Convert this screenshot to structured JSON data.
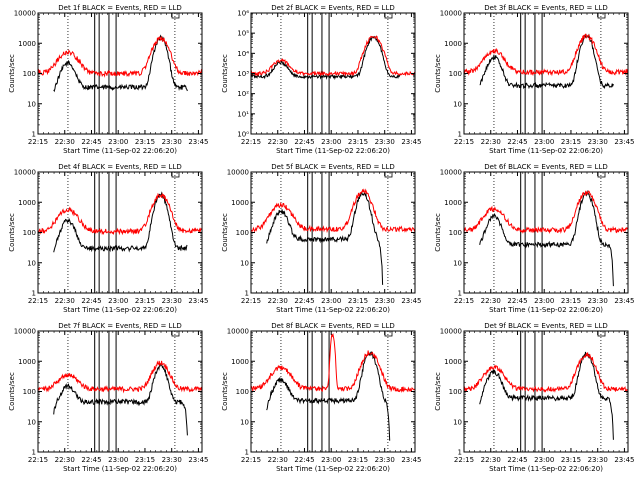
{
  "colors": {
    "events": "#000000",
    "lld": "#ff0000",
    "axes": "#000000",
    "background": "#ffffff"
  },
  "chart_data": [
    {
      "type": "line",
      "title": "Det 1f BLACK = Events, RED = LLD",
      "xlabel": "Start Time (11-Sep-02 22:06:20)",
      "ylabel": "Counts/sec",
      "x_ticks": [
        "22:15",
        "22:30",
        "22:45",
        "23:00",
        "23:15",
        "23:30",
        "23:45"
      ],
      "y_ticks": [
        "1",
        "10",
        "100",
        "1000",
        "10000"
      ],
      "ylim": [
        1,
        10000
      ],
      "yscale": "log",
      "xlim_minutes": [
        9.2,
        101.2
      ],
      "dotted_lines_minutes": [
        26,
        86
      ],
      "boxes_minutes": [
        [
          41,
          43.5
        ],
        [
          49,
          53
        ]
      ],
      "series": [
        {
          "name": "Events",
          "color": "#000000",
          "start_minutes": 18,
          "end_minutes": 93,
          "start_value": 20,
          "base": 35,
          "end_value": 30,
          "peaks": [
            [
              26,
              220,
              3
            ],
            [
              78,
              1500,
              2.5
            ]
          ]
        },
        {
          "name": "LLD",
          "color": "#ff0000",
          "start_minutes": 9.2,
          "end_minutes": 101.2,
          "start_value": 120,
          "base": 100,
          "end_value": 130,
          "peaks": [
            [
              26,
              500,
              4.5
            ],
            [
              78,
              1400,
              3.5
            ]
          ]
        }
      ]
    },
    {
      "type": "line",
      "title": "Det 2f BLACK = Events, RED = LLD",
      "xlabel": "Start Time (11-Sep-02 22:06:20)",
      "ylabel": "Counts/sec",
      "x_ticks": [
        "22:15",
        "22:30",
        "22:45",
        "23:00",
        "23:15",
        "23:30",
        "23:45"
      ],
      "y_ticks": [
        "10⁰",
        "10¹",
        "10²",
        "10³",
        "10⁴",
        "10⁵",
        "10⁶"
      ],
      "ylim": [
        1,
        1000000
      ],
      "yscale": "log",
      "xlim_minutes": [
        9.2,
        101.2
      ],
      "dotted_lines_minutes": [
        26,
        86
      ],
      "boxes_minutes": [
        [
          41,
          43.5
        ],
        [
          49,
          53
        ]
      ],
      "series": [
        {
          "name": "Events",
          "color": "#000000",
          "start_minutes": 9.2,
          "end_minutes": 93,
          "start_value": 900,
          "base": 700,
          "end_value": 800,
          "peaks": [
            [
              26,
              3500,
              3
            ],
            [
              78,
              60000,
              2.5
            ]
          ]
        },
        {
          "name": "LLD",
          "color": "#ff0000",
          "start_minutes": 9.2,
          "end_minutes": 101.2,
          "start_value": 1000,
          "base": 1000,
          "end_value": 1000,
          "peaks": [
            [
              26,
              4500,
              3.5
            ],
            [
              78,
              70000,
              3
            ]
          ]
        }
      ]
    },
    {
      "type": "line",
      "title": "Det 3f BLACK = Events, RED = LLD",
      "xlabel": "Start Time (11-Sep-02 22:06:20)",
      "ylabel": "Counts/sec",
      "x_ticks": [
        "22:15",
        "22:30",
        "22:45",
        "23:00",
        "23:15",
        "23:30",
        "23:45"
      ],
      "y_ticks": [
        "1",
        "10",
        "100",
        "1000",
        "10000"
      ],
      "ylim": [
        1,
        10000
      ],
      "yscale": "log",
      "xlim_minutes": [
        9.2,
        101.2
      ],
      "dotted_lines_minutes": [
        26,
        86
      ],
      "boxes_minutes": [
        [
          41,
          43.5
        ],
        [
          49,
          53
        ]
      ],
      "series": [
        {
          "name": "Events",
          "color": "#000000",
          "start_minutes": 18,
          "end_minutes": 93,
          "start_value": 30,
          "base": 40,
          "end_value": 40,
          "peaks": [
            [
              26,
              350,
              3
            ],
            [
              78,
              1800,
              2.5
            ]
          ]
        },
        {
          "name": "LLD",
          "color": "#ff0000",
          "start_minutes": 9.2,
          "end_minutes": 101.2,
          "start_value": 130,
          "base": 110,
          "end_value": 130,
          "peaks": [
            [
              26,
              550,
              4.5
            ],
            [
              78,
              1700,
              3.5
            ]
          ]
        }
      ]
    },
    {
      "type": "line",
      "title": "Det 4f BLACK = Events, RED = LLD",
      "xlabel": "Start Time (11-Sep-02 22:06:20)",
      "ylabel": "Counts/sec",
      "x_ticks": [
        "22:15",
        "22:30",
        "22:45",
        "23:00",
        "23:15",
        "23:30",
        "23:45"
      ],
      "y_ticks": [
        "1",
        "10",
        "100",
        "1000",
        "10000"
      ],
      "ylim": [
        1,
        10000
      ],
      "yscale": "log",
      "xlim_minutes": [
        9.2,
        101.2
      ],
      "dotted_lines_minutes": [
        26,
        86
      ],
      "boxes_minutes": [
        [
          41,
          43.5
        ],
        [
          49,
          53
        ]
      ],
      "series": [
        {
          "name": "Events",
          "color": "#000000",
          "start_minutes": 18,
          "end_minutes": 93,
          "start_value": 15,
          "base": 30,
          "end_value": 35,
          "peaks": [
            [
              26,
              250,
              3
            ],
            [
              78,
              1800,
              2.5
            ]
          ]
        },
        {
          "name": "LLD",
          "color": "#ff0000",
          "start_minutes": 9.2,
          "end_minutes": 101.2,
          "start_value": 120,
          "base": 110,
          "end_value": 130,
          "peaks": [
            [
              26,
              550,
              4.5
            ],
            [
              78,
              1700,
              3.5
            ]
          ]
        }
      ]
    },
    {
      "type": "line",
      "title": "Det 5f BLACK = Events, RED = LLD",
      "xlabel": "Start Time (11-Sep-02 22:06:20)",
      "ylabel": "Counts/sec",
      "x_ticks": [
        "22:15",
        "22:30",
        "22:45",
        "23:00",
        "23:15",
        "23:30",
        "23:45"
      ],
      "y_ticks": [
        "1",
        "10",
        "100",
        "1000",
        "10000"
      ],
      "ylim": [
        1,
        10000
      ],
      "yscale": "log",
      "xlim_minutes": [
        9.2,
        101.2
      ],
      "dotted_lines_minutes": [
        26,
        86
      ],
      "boxes_minutes": [
        [
          41,
          43.5
        ],
        [
          49,
          53
        ]
      ],
      "series": [
        {
          "name": "Events",
          "color": "#000000",
          "start_minutes": 18,
          "end_minutes": 83,
          "start_value": 30,
          "base": 60,
          "end_value": 2,
          "peaks": [
            [
              26,
              500,
              3
            ],
            [
              72,
              2000,
              2.5
            ]
          ]
        },
        {
          "name": "LLD",
          "color": "#ff0000",
          "start_minutes": 9.2,
          "end_minutes": 101.2,
          "start_value": 120,
          "base": 130,
          "end_value": 130,
          "peaks": [
            [
              26,
              800,
              4.5
            ],
            [
              72,
              2300,
              3.5
            ]
          ]
        }
      ]
    },
    {
      "type": "line",
      "title": "Det 6f BLACK = Events, RED = LLD",
      "xlabel": "Start Time (11-Sep-02 22:06:20)",
      "ylabel": "Counts/sec",
      "x_ticks": [
        "22:15",
        "22:30",
        "22:45",
        "23:00",
        "23:15",
        "23:30",
        "23:45"
      ],
      "y_ticks": [
        "1",
        "10",
        "100",
        "1000",
        "10000"
      ],
      "ylim": [
        1,
        10000
      ],
      "yscale": "log",
      "xlim_minutes": [
        9.2,
        101.2
      ],
      "dotted_lines_minutes": [
        26,
        86
      ],
      "boxes_minutes": [
        [
          41,
          43.5
        ],
        [
          49,
          53
        ]
      ],
      "series": [
        {
          "name": "Events",
          "color": "#000000",
          "start_minutes": 18,
          "end_minutes": 93,
          "start_value": 30,
          "base": 40,
          "end_value": 2,
          "peaks": [
            [
              26,
              350,
              3
            ],
            [
              78,
              2000,
              2.5
            ]
          ]
        },
        {
          "name": "LLD",
          "color": "#ff0000",
          "start_minutes": 9.2,
          "end_minutes": 101.2,
          "start_value": 120,
          "base": 120,
          "end_value": 130,
          "peaks": [
            [
              26,
              600,
              4.5
            ],
            [
              78,
              2100,
              3.5
            ]
          ]
        }
      ]
    },
    {
      "type": "line",
      "title": "Det 7f BLACK = Events, RED = LLD",
      "xlabel": "Start Time (11-Sep-02 22:06:20)",
      "ylabel": "Counts/sec",
      "x_ticks": [
        "22:15",
        "22:30",
        "22:45",
        "23:00",
        "23:15",
        "23:30",
        "23:45"
      ],
      "y_ticks": [
        "1",
        "10",
        "100",
        "1000",
        "10000"
      ],
      "ylim": [
        1,
        10000
      ],
      "yscale": "log",
      "xlim_minutes": [
        9.2,
        101.2
      ],
      "dotted_lines_minutes": [
        26,
        86
      ],
      "boxes_minutes": [
        [
          41,
          43.5
        ],
        [
          49,
          53
        ]
      ],
      "series": [
        {
          "name": "Events",
          "color": "#000000",
          "start_minutes": 18,
          "end_minutes": 93,
          "start_value": 15,
          "base": 45,
          "end_value": 3,
          "peaks": [
            [
              26,
              150,
              3
            ],
            [
              78,
              700,
              2.5
            ]
          ]
        },
        {
          "name": "LLD",
          "color": "#ff0000",
          "start_minutes": 9.2,
          "end_minutes": 101.2,
          "start_value": 120,
          "base": 120,
          "end_value": 120,
          "peaks": [
            [
              26,
              350,
              4.5
            ],
            [
              78,
              900,
              3.5
            ]
          ]
        }
      ]
    },
    {
      "type": "line",
      "title": "Det 8f BLACK = Events, RED = LLD",
      "xlabel": "Start Time (11-Sep-02 22:06:20)",
      "ylabel": "Counts/sec",
      "x_ticks": [
        "22:15",
        "22:30",
        "22:45",
        "23:00",
        "23:15",
        "23:30",
        "23:45"
      ],
      "y_ticks": [
        "1",
        "10",
        "100",
        "1000",
        "10000"
      ],
      "ylim": [
        1,
        10000
      ],
      "yscale": "log",
      "xlim_minutes": [
        9.2,
        101.2
      ],
      "dotted_lines_minutes": [
        26,
        86
      ],
      "boxes_minutes": [
        [
          41,
          43.5
        ],
        [
          49,
          53
        ]
      ],
      "series": [
        {
          "name": "Events",
          "color": "#000000",
          "start_minutes": 18,
          "end_minutes": 87,
          "start_value": 20,
          "base": 50,
          "end_value": 2,
          "peaks": [
            [
              26,
              250,
              3
            ],
            [
              76,
              1900,
              2.5
            ]
          ]
        },
        {
          "name": "LLD",
          "color": "#ff0000",
          "start_minutes": 9.2,
          "end_minutes": 101.2,
          "start_value": 130,
          "base": 120,
          "end_value": 120,
          "peaks": [
            [
              26,
              600,
              4.5
            ],
            [
              55,
              8000,
              0.8
            ],
            [
              76,
              2000,
              3.5
            ]
          ]
        }
      ]
    },
    {
      "type": "line",
      "title": "Det 9f BLACK = Events, RED = LLD",
      "xlabel": "Start Time (11-Sep-02 22:06:20)",
      "ylabel": "Counts/sec",
      "x_ticks": [
        "22:15",
        "22:30",
        "22:45",
        "23:00",
        "23:15",
        "23:30",
        "23:45"
      ],
      "y_ticks": [
        "1",
        "10",
        "100",
        "1000",
        "10000"
      ],
      "ylim": [
        1,
        10000
      ],
      "yscale": "log",
      "xlim_minutes": [
        9.2,
        101.2
      ],
      "dotted_lines_minutes": [
        26,
        86
      ],
      "boxes_minutes": [
        [
          41,
          43.5
        ],
        [
          49,
          53
        ]
      ],
      "series": [
        {
          "name": "Events",
          "color": "#000000",
          "start_minutes": 18,
          "end_minutes": 93,
          "start_value": 30,
          "base": 60,
          "end_value": 3,
          "peaks": [
            [
              26,
              450,
              3
            ],
            [
              78,
              1800,
              2.5
            ]
          ]
        },
        {
          "name": "LLD",
          "color": "#ff0000",
          "start_minutes": 9.2,
          "end_minutes": 101.2,
          "start_value": 120,
          "base": 120,
          "end_value": 120,
          "peaks": [
            [
              26,
              600,
              4.5
            ],
            [
              78,
              1700,
              3.5
            ]
          ]
        }
      ]
    }
  ]
}
